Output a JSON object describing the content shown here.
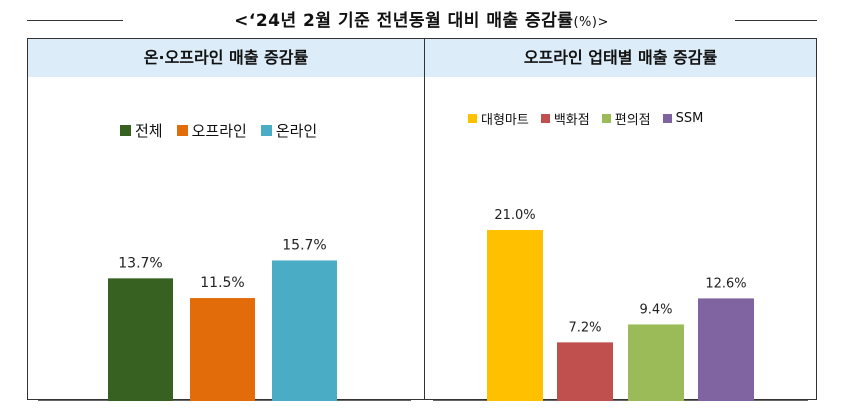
{
  "title": {
    "main": "<‘24년 2월 기준 전년동월 대비 매출 증감률",
    "unit": "(%)>"
  },
  "chart_data": [
    {
      "type": "bar",
      "title": "온·오프라인 매출 증감률",
      "categories": [
        "전체",
        "오프라인",
        "온라인"
      ],
      "values": [
        13.7,
        11.5,
        15.7
      ],
      "data_labels": [
        "13.7%",
        "11.5%",
        "15.7%"
      ],
      "colors": [
        "#376121",
        "#e36c0a",
        "#4bacc6"
      ],
      "ylim": [
        0,
        21
      ],
      "grid": false,
      "legend_position": "top-center"
    },
    {
      "type": "bar",
      "title": "오프라인 업태별 매출 증감률",
      "categories": [
        "대형마트",
        "백화점",
        "편의점",
        "SSM"
      ],
      "values": [
        21.0,
        7.2,
        9.4,
        12.6
      ],
      "data_labels": [
        "21.0%",
        "7.2%",
        "9.4%",
        "12.6%"
      ],
      "colors": [
        "#ffc000",
        "#c0504d",
        "#9bbb59",
        "#8064a2"
      ],
      "ylim": [
        0,
        21
      ],
      "grid": false,
      "legend_position": "top-left"
    }
  ]
}
